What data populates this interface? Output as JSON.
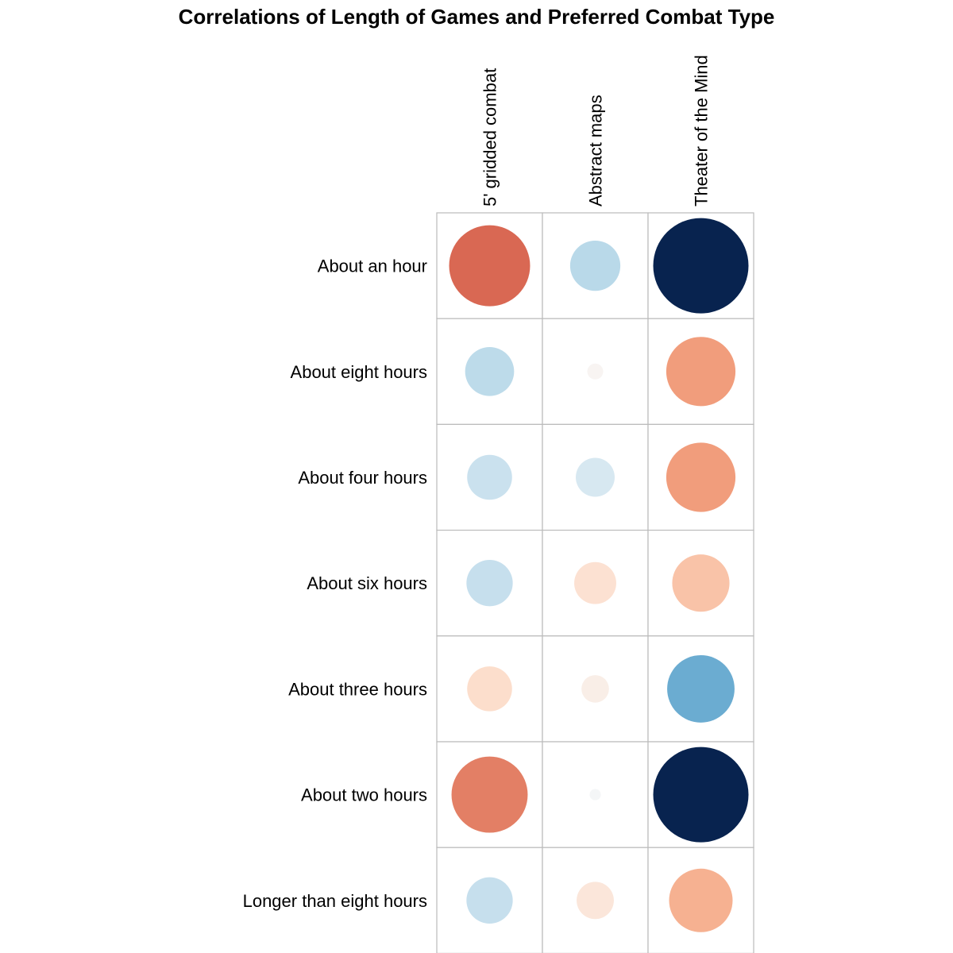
{
  "chart_data": {
    "type": "heatmap",
    "title": "Correlations of Length of Games and Preferred Combat Type",
    "xlabel": "",
    "ylabel": "",
    "columns": [
      "5' gridded combat",
      "Abstract maps",
      "Theater of the Mind"
    ],
    "rows": [
      "About an hour",
      "About eight hours",
      "About four hours",
      "About six hours",
      "About three hours",
      "About two hours",
      "Longer than eight hours"
    ],
    "values": [
      [
        2.6,
        -1.0,
        -3.6
      ],
      [
        -0.95,
        0.1,
        1.9
      ],
      [
        -0.8,
        -0.6,
        1.9
      ],
      [
        -0.85,
        0.7,
        1.3
      ],
      [
        0.8,
        0.3,
        -1.8
      ],
      [
        2.3,
        -0.05,
        -3.6
      ],
      [
        -0.85,
        0.55,
        1.6
      ]
    ],
    "color_scale": {
      "negative_extreme": "#08234f",
      "positive_extreme": "#b7292f",
      "neutral": "#f7f7f7",
      "scale_max": 3.6
    },
    "grid_color": "#bbbbbb"
  }
}
